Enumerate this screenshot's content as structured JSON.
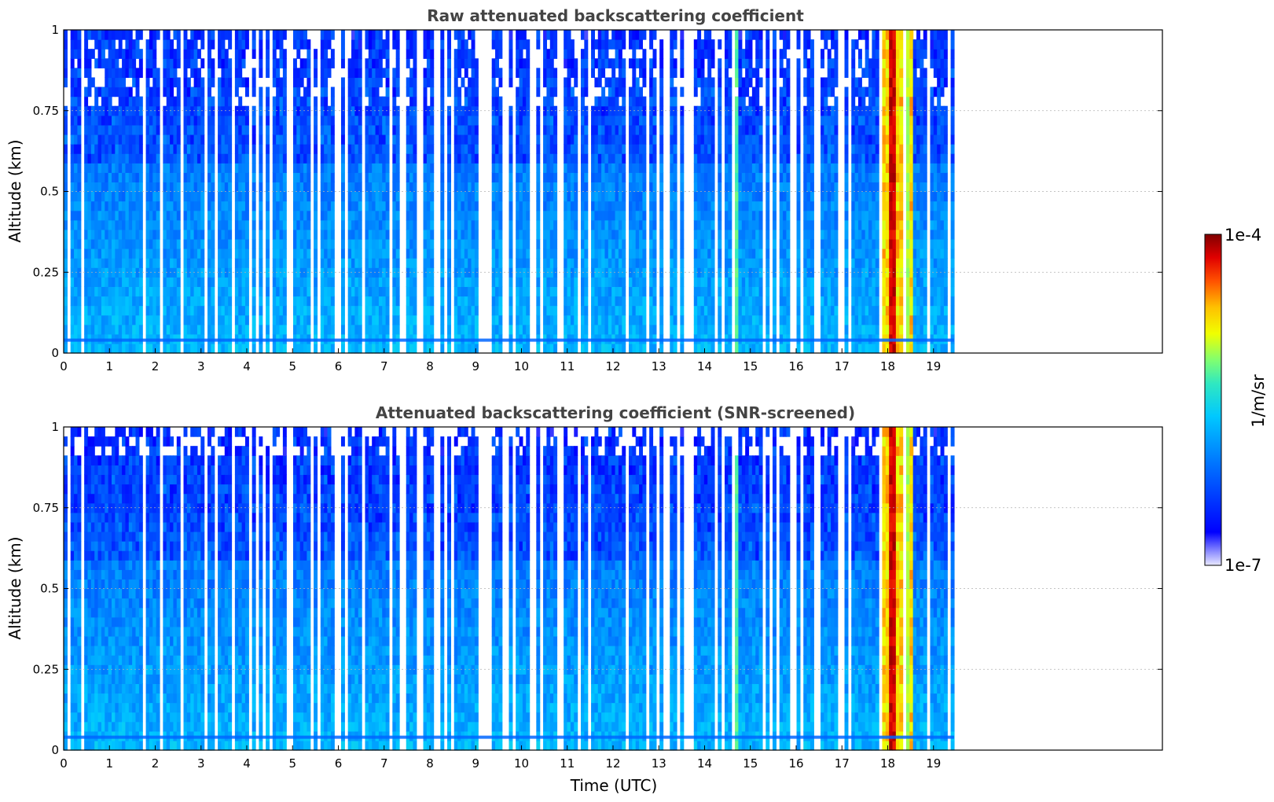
{
  "chart_data": [
    {
      "type": "heatmap",
      "title": "Raw attenuated backscattering coefficient",
      "xlabel": "",
      "ylabel": "Altitude (km)",
      "xlim": [
        0,
        24
      ],
      "ylim": [
        0,
        1
      ],
      "x_ticks": [
        "0",
        "1",
        "2",
        "3",
        "4",
        "5",
        "6",
        "7",
        "8",
        "9",
        "10",
        "11",
        "12",
        "13",
        "14",
        "15",
        "16",
        "17",
        "18",
        "19"
      ],
      "y_ticks": [
        "0",
        "0.25",
        "0.5",
        "0.75",
        "1"
      ],
      "data_end_hour": 19.45,
      "grid": true,
      "screened": false,
      "features": [
        {
          "hours": [
            17.85,
            18.55
          ],
          "description_level": "high (1e-5 to 1e-4), strong cloud/fog signal from surface to 1 km"
        },
        {
          "hours": [
            14.6,
            14.7
          ],
          "description_level": "moderate (~1e-5) thin column"
        },
        {
          "altitude_km": 0.04,
          "description_level": "thin enhanced layer near surface"
        }
      ]
    },
    {
      "type": "heatmap",
      "title": "Attenuated backscattering coefficient (SNR-screened)",
      "xlabel": "Time (UTC)",
      "ylabel": "Altitude (km)",
      "xlim": [
        0,
        24
      ],
      "ylim": [
        0,
        1
      ],
      "x_ticks": [
        "0",
        "1",
        "2",
        "3",
        "4",
        "5",
        "6",
        "7",
        "8",
        "9",
        "10",
        "11",
        "12",
        "13",
        "14",
        "15",
        "16",
        "17",
        "18",
        "19"
      ],
      "y_ticks": [
        "0",
        "0.25",
        "0.5",
        "0.75",
        "1"
      ],
      "data_end_hour": 19.45,
      "grid": true,
      "screened": true
    }
  ],
  "colorbar": {
    "max_label": "1e-4",
    "min_label": "1e-7",
    "unit_label": "1/m/sr",
    "colormap": [
      "#ffffff",
      "#c8c8ff",
      "#8080ff",
      "#0000ff",
      "#0050ff",
      "#0096ff",
      "#00c8ff",
      "#20e0e0",
      "#60ff90",
      "#c0ff40",
      "#ffff00",
      "#ffc000",
      "#ff8000",
      "#ff2000",
      "#d00000",
      "#800000"
    ]
  }
}
